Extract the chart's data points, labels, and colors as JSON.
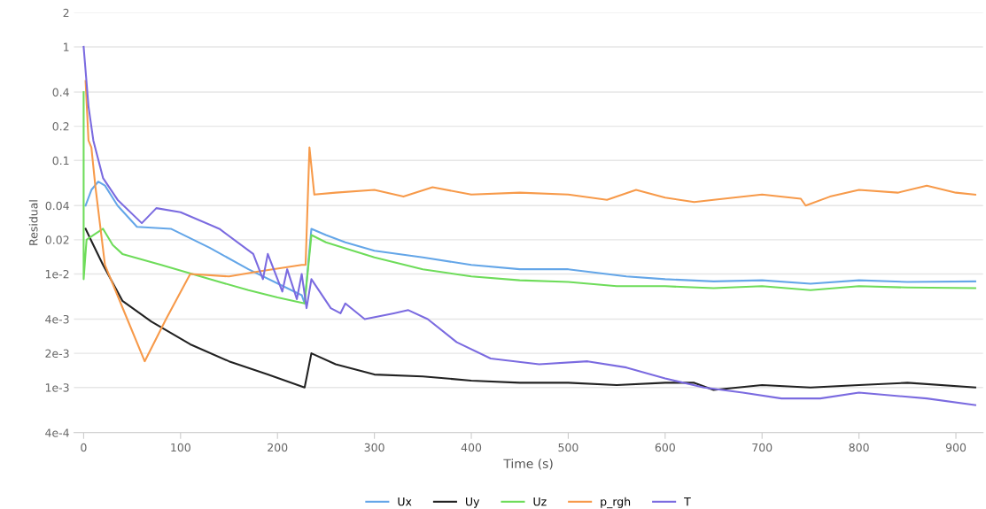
{
  "chart_data": {
    "type": "line",
    "xlabel": "Time (s)",
    "ylabel": "Residual",
    "log": "y",
    "grid": "y",
    "legend": "bottom",
    "marker": "none",
    "line_style": "solid",
    "xlim": [
      -10,
      928
    ],
    "xticks": [
      0,
      100,
      200,
      300,
      400,
      500,
      600,
      700,
      800,
      900
    ],
    "ylim": [
      0.0004,
      2
    ],
    "yticks": [
      {
        "value": 0.0004,
        "label": "4e-4"
      },
      {
        "value": 0.001,
        "label": "1e-3"
      },
      {
        "value": 0.002,
        "label": "2e-3"
      },
      {
        "value": 0.004,
        "label": "4e-3"
      },
      {
        "value": 0.01,
        "label": "1e-2"
      },
      0.02,
      0.04,
      0.1,
      0.2,
      0.4,
      1,
      2
    ],
    "series": [
      {
        "name": "Ux",
        "color": "#64a6e8",
        "x": [
          2,
          8,
          15,
          22,
          35,
          55,
          90,
          130,
          170,
          210,
          225,
          228,
          235,
          250,
          270,
          300,
          350,
          400,
          450,
          500,
          560,
          600,
          650,
          700,
          750,
          800,
          850,
          920
        ],
        "values": [
          0.04,
          0.055,
          0.065,
          0.06,
          0.04,
          0.026,
          0.025,
          0.017,
          0.011,
          0.0075,
          0.0065,
          0.0055,
          0.025,
          0.022,
          0.019,
          0.016,
          0.014,
          0.012,
          0.011,
          0.011,
          0.0095,
          0.009,
          0.0086,
          0.0088,
          0.0082,
          0.0088,
          0.0085,
          0.0086
        ]
      },
      {
        "name": "Uy",
        "color": "#222222",
        "x": [
          2,
          10,
          20,
          40,
          70,
          110,
          150,
          190,
          228,
          235,
          260,
          300,
          350,
          400,
          450,
          500,
          550,
          600,
          630,
          650,
          700,
          750,
          800,
          850,
          920
        ],
        "values": [
          0.025,
          0.018,
          0.012,
          0.0058,
          0.0038,
          0.0024,
          0.0017,
          0.0013,
          0.001,
          0.002,
          0.0016,
          0.0013,
          0.00125,
          0.00115,
          0.0011,
          0.0011,
          0.00105,
          0.0011,
          0.0011,
          0.00095,
          0.00105,
          0.001,
          0.00105,
          0.0011,
          0.001
        ]
      },
      {
        "name": "Uz",
        "color": "#6edc5a",
        "x": [
          0,
          0,
          3,
          10,
          20,
          30,
          40,
          80,
          130,
          170,
          200,
          228,
          235,
          250,
          300,
          350,
          400,
          450,
          500,
          550,
          600,
          650,
          700,
          750,
          800,
          850,
          920
        ],
        "values": [
          0.4,
          0.009,
          0.02,
          0.022,
          0.025,
          0.018,
          0.015,
          0.012,
          0.009,
          0.0072,
          0.0062,
          0.0055,
          0.022,
          0.019,
          0.014,
          0.011,
          0.0095,
          0.0088,
          0.0085,
          0.0078,
          0.0078,
          0.0075,
          0.0078,
          0.0072,
          0.0078,
          0.0076,
          0.0075
        ]
      },
      {
        "name": "p_rgh",
        "color": "#f79a4a",
        "x": [
          2,
          5,
          8,
          12,
          22,
          45,
          63,
          85,
          110,
          150,
          180,
          225,
          229,
          233,
          238,
          260,
          300,
          330,
          360,
          400,
          450,
          500,
          540,
          570,
          600,
          630,
          650,
          700,
          740,
          745,
          770,
          800,
          840,
          870,
          900,
          920
        ],
        "values": [
          0.5,
          0.15,
          0.13,
          0.06,
          0.012,
          0.004,
          0.0017,
          0.004,
          0.01,
          0.0095,
          0.0105,
          0.012,
          0.012,
          0.13,
          0.05,
          0.052,
          0.055,
          0.048,
          0.058,
          0.05,
          0.052,
          0.05,
          0.045,
          0.055,
          0.047,
          0.043,
          0.045,
          0.05,
          0.046,
          0.04,
          0.048,
          0.055,
          0.052,
          0.06,
          0.052,
          0.05
        ]
      },
      {
        "name": "T",
        "color": "#7b6be0",
        "x": [
          0,
          5,
          10,
          20,
          35,
          60,
          75,
          100,
          140,
          175,
          185,
          190,
          205,
          210,
          220,
          225,
          230,
          235,
          255,
          265,
          270,
          290,
          320,
          335,
          355,
          385,
          420,
          470,
          520,
          560,
          600,
          640,
          680,
          720,
          760,
          800,
          870,
          920
        ],
        "values": [
          1,
          0.3,
          0.15,
          0.07,
          0.045,
          0.028,
          0.038,
          0.035,
          0.025,
          0.015,
          0.009,
          0.015,
          0.007,
          0.011,
          0.006,
          0.01,
          0.005,
          0.009,
          0.005,
          0.0045,
          0.0055,
          0.004,
          0.0045,
          0.0048,
          0.004,
          0.0025,
          0.0018,
          0.0016,
          0.0017,
          0.0015,
          0.0012,
          0.001,
          0.0009,
          0.0008,
          0.0008,
          0.0009,
          0.0008,
          0.0007
        ]
      }
    ]
  }
}
